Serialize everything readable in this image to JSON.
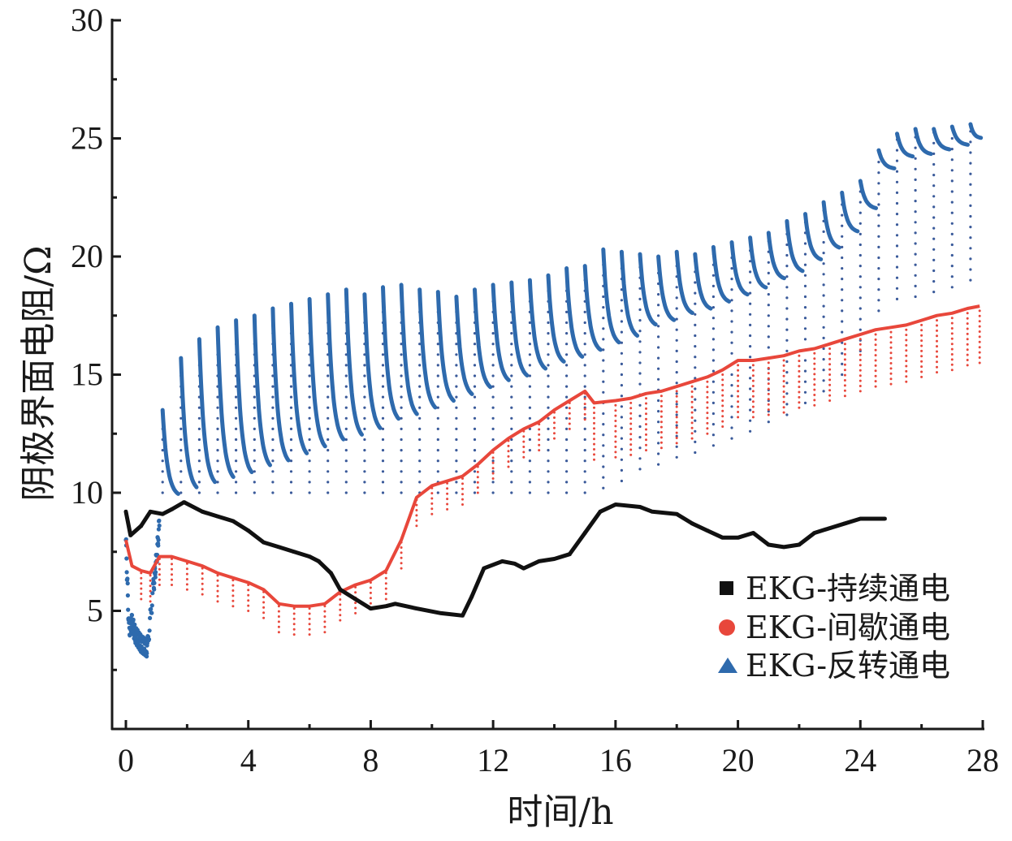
{
  "chart_data": {
    "type": "scatter",
    "title": "",
    "xlabel": "时间/h",
    "ylabel": "阴极界面电阻/Ω",
    "xlim": [
      0,
      28
    ],
    "ylim": [
      0,
      30
    ],
    "xticks": [
      0,
      4,
      8,
      12,
      16,
      20,
      24,
      28
    ],
    "xtick_labels": [
      "0",
      "4",
      "8",
      "12",
      "16",
      "20",
      "24",
      "28"
    ],
    "yticks": [
      5,
      10,
      15,
      20,
      25,
      30
    ],
    "ytick_labels": [
      "5",
      "10",
      "15",
      "20",
      "25",
      "30"
    ],
    "grid": false,
    "legend_position": "bottom-right",
    "series": [
      {
        "name": "EKG-持续通电",
        "marker": "square",
        "color": "#111111",
        "x": [
          0,
          0.15,
          0.5,
          0.8,
          1.2,
          1.5,
          1.9,
          2.5,
          3.0,
          3.5,
          4.0,
          4.5,
          5.0,
          5.5,
          6.0,
          6.3,
          6.7,
          7.0,
          7.5,
          8.0,
          8.5,
          8.8,
          9.5,
          10.3,
          11.0,
          11.3,
          11.7,
          12.3,
          12.7,
          13.0,
          13.5,
          14.0,
          14.5,
          15.0,
          15.5,
          16.0,
          16.8,
          17.2,
          18.0,
          18.5,
          19.0,
          19.5,
          20.0,
          20.5,
          21.0,
          21.5,
          22.0,
          22.5,
          23.0,
          23.5,
          24.0,
          24.8
        ],
        "y": [
          9.2,
          8.2,
          8.6,
          9.2,
          9.1,
          9.3,
          9.6,
          9.2,
          9.0,
          8.8,
          8.4,
          7.9,
          7.7,
          7.5,
          7.3,
          7.1,
          6.6,
          5.9,
          5.5,
          5.1,
          5.2,
          5.3,
          5.1,
          4.9,
          4.8,
          5.6,
          6.8,
          7.1,
          7.0,
          6.8,
          7.1,
          7.2,
          7.4,
          8.3,
          9.2,
          9.5,
          9.4,
          9.2,
          9.1,
          8.7,
          8.4,
          8.1,
          8.1,
          8.3,
          7.8,
          7.7,
          7.8,
          8.3,
          8.5,
          8.7,
          8.9,
          8.9
        ]
      },
      {
        "name": "EKG-间歇通电",
        "marker": "circle",
        "color": "#e8473b",
        "x": [
          0,
          0.2,
          0.5,
          0.8,
          1.1,
          1.5,
          2.0,
          2.5,
          3.0,
          3.5,
          4.0,
          4.5,
          5.0,
          5.5,
          6.0,
          6.5,
          7.0,
          7.5,
          8.0,
          8.5,
          9.0,
          9.5,
          10.0,
          10.5,
          11.0,
          11.5,
          12.0,
          12.5,
          13.0,
          13.5,
          14.0,
          14.5,
          15.0,
          15.3,
          16.0,
          16.5,
          17.0,
          17.5,
          18.0,
          18.5,
          19.0,
          19.5,
          20.0,
          20.5,
          21.0,
          21.5,
          22.0,
          22.5,
          23.0,
          23.5,
          24.0,
          24.5,
          25.0,
          25.5,
          26.0,
          26.5,
          27.0,
          27.5,
          27.9
        ],
        "y": [
          8.0,
          6.9,
          6.7,
          6.6,
          7.3,
          7.3,
          7.1,
          6.9,
          6.6,
          6.4,
          6.2,
          5.9,
          5.3,
          5.2,
          5.2,
          5.3,
          5.8,
          6.1,
          6.3,
          6.7,
          8.0,
          9.8,
          10.3,
          10.5,
          10.7,
          11.2,
          11.8,
          12.3,
          12.7,
          13.0,
          13.5,
          13.9,
          14.3,
          13.8,
          13.9,
          14.0,
          14.2,
          14.3,
          14.5,
          14.7,
          14.9,
          15.2,
          15.6,
          15.6,
          15.7,
          15.8,
          16.0,
          16.1,
          16.3,
          16.5,
          16.7,
          16.9,
          17.0,
          17.1,
          17.3,
          17.5,
          17.6,
          17.8,
          17.9
        ]
      },
      {
        "name": "EKG-反转通电",
        "marker": "triangle",
        "color": "#2e6aad",
        "cycle_start_h": [
          1.2,
          1.8,
          2.4,
          3.0,
          3.6,
          4.2,
          4.8,
          5.4,
          6.0,
          6.6,
          7.2,
          7.8,
          8.4,
          9.0,
          9.6,
          10.2,
          10.8,
          11.4,
          12.0,
          12.6,
          13.2,
          13.8,
          14.4,
          15.0,
          15.6,
          16.2,
          16.8,
          17.4,
          18.0,
          18.6,
          19.2,
          19.8,
          20.4,
          21.0,
          21.6,
          22.2,
          22.8,
          23.4,
          24.0,
          24.6,
          25.2,
          25.8,
          26.4,
          27.0,
          27.6
        ],
        "cycle_peak": [
          13.5,
          15.7,
          16.5,
          17.0,
          17.3,
          17.5,
          17.8,
          18.0,
          18.2,
          18.4,
          18.6,
          18.4,
          18.7,
          18.8,
          18.6,
          18.5,
          18.3,
          18.6,
          18.8,
          18.9,
          19.0,
          19.2,
          19.5,
          19.6,
          20.3,
          20.2,
          20.1,
          20.0,
          20.2,
          20.1,
          20.4,
          20.6,
          20.8,
          21.0,
          21.5,
          21.8,
          22.3,
          22.7,
          23.2,
          24.5,
          25.2,
          25.4,
          25.4,
          25.5,
          25.6
        ],
        "cycle_trough": [
          9.8,
          10.0,
          10.2,
          10.4,
          10.6,
          10.9,
          11.1,
          11.4,
          11.7,
          12.0,
          12.2,
          12.5,
          12.9,
          13.1,
          13.4,
          13.7,
          14.0,
          14.3,
          14.6,
          14.8,
          15.1,
          15.4,
          15.6,
          15.9,
          16.2,
          16.5,
          17.0,
          17.2,
          17.5,
          17.7,
          18.0,
          18.3,
          18.6,
          19.0,
          19.3,
          19.8,
          20.3,
          21.0,
          22.0,
          23.7,
          24.2,
          24.3,
          24.5,
          24.7,
          25.0
        ],
        "early_x": [
          0,
          0.1,
          0.2,
          0.3,
          0.4,
          0.5,
          0.6,
          0.7,
          0.9,
          1.0,
          1.1
        ],
        "early_y": [
          8.0,
          4.2,
          4.5,
          4.0,
          3.8,
          3.6,
          3.5,
          3.4,
          6.0,
          7.2,
          8.8
        ]
      }
    ]
  }
}
